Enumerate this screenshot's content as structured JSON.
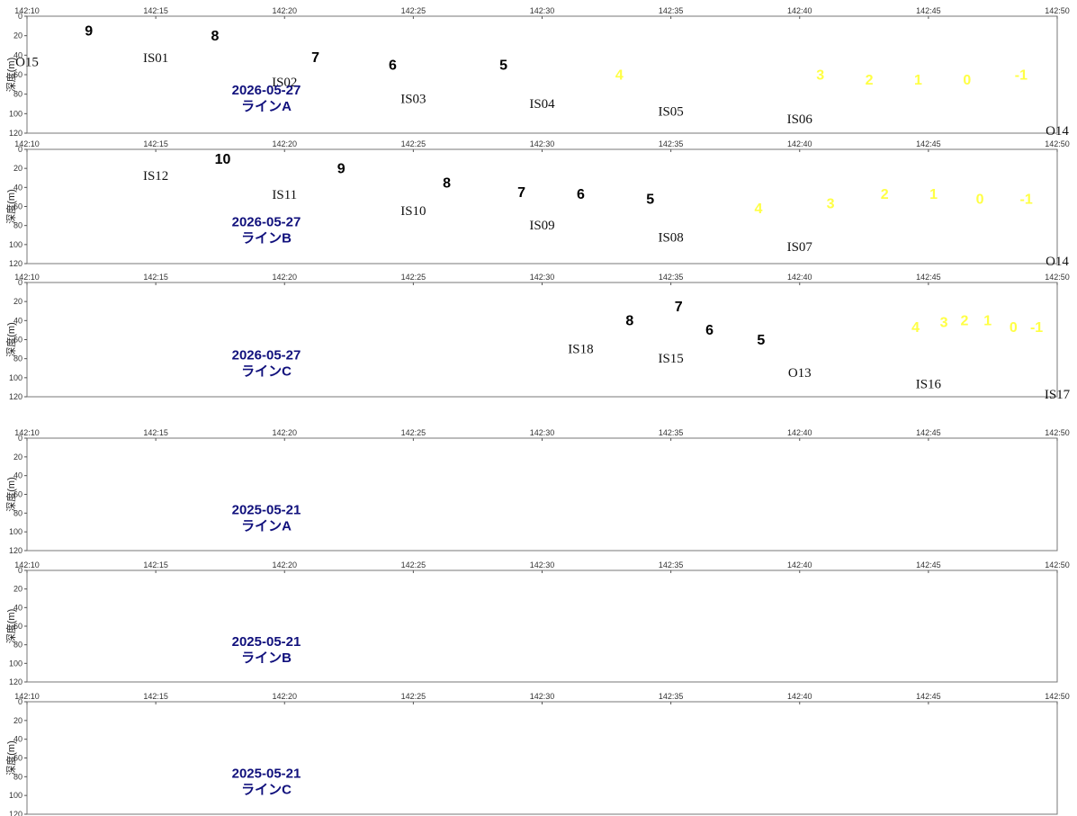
{
  "colors": {
    "warm": [
      "#fcdede",
      "#f9b9b9",
      "#f39494",
      "#ee7575"
    ],
    "cold": [
      "#e0e1fb",
      "#c2c3f7",
      "#a3a5f2",
      "#8789ee",
      "#6466e8",
      "#4245e2",
      "#2124dc",
      "#0a0cd8"
    ],
    "terrain": "#bdbdbd",
    "station_line": "#22dd22",
    "date_text": "#10107c",
    "warm_label": "#000000",
    "cold_label": "#ffff44"
  },
  "chart_data": [
    {
      "type": "contour",
      "date": "2026-05-27",
      "line": "ラインA",
      "ylabel": "深度(m)",
      "x_ticks": [
        "142:10",
        "142:15",
        "142:20",
        "142:25",
        "142:30",
        "142:35",
        "142:40",
        "142:45",
        "142:50"
      ],
      "y_ticks": [
        "0",
        "20",
        "40",
        "60",
        "80",
        "100",
        "120"
      ],
      "xlim": [
        10,
        50
      ],
      "ylim": [
        0,
        120
      ],
      "stations": [
        {
          "name": "O15",
          "lon": 10,
          "depth": 37
        },
        {
          "name": "IS01",
          "lon": 15,
          "depth": 33
        },
        {
          "name": "IS02",
          "lon": 20,
          "depth": 58
        },
        {
          "name": "IS03",
          "lon": 25,
          "depth": 75
        },
        {
          "name": "IS04",
          "lon": 30,
          "depth": 80
        },
        {
          "name": "IS05",
          "lon": 35,
          "depth": 88
        },
        {
          "name": "IS06",
          "lon": 40,
          "depth": 96
        },
        {
          "name": "O14",
          "lon": 50,
          "depth": 112
        }
      ],
      "temperature_labels": [
        {
          "text": "9",
          "lon": 12.4,
          "depth": 20,
          "color": "warm_label"
        },
        {
          "text": "8",
          "lon": 17.3,
          "depth": 25,
          "color": "warm_label"
        },
        {
          "text": "7",
          "lon": 21.2,
          "depth": 47,
          "color": "warm_label"
        },
        {
          "text": "6",
          "lon": 24.2,
          "depth": 55,
          "color": "warm_label"
        },
        {
          "text": "5",
          "lon": 28.5,
          "depth": 55,
          "color": "warm_label"
        },
        {
          "text": "4",
          "lon": 33.0,
          "depth": 65,
          "color": "cold_label"
        },
        {
          "text": "3",
          "lon": 40.8,
          "depth": 65,
          "color": "cold_label"
        },
        {
          "text": "2",
          "lon": 42.7,
          "depth": 70,
          "color": "cold_label"
        },
        {
          "text": "1",
          "lon": 44.6,
          "depth": 70,
          "color": "cold_label"
        },
        {
          "text": "0",
          "lon": 46.5,
          "depth": 70,
          "color": "cold_label"
        },
        {
          "text": "-1",
          "lon": 48.6,
          "depth": 65,
          "color": "cold_label"
        }
      ]
    },
    {
      "type": "contour",
      "date": "2026-05-27",
      "line": "ラインB",
      "ylabel": "深度(m)",
      "x_ticks": [
        "142:10",
        "142:15",
        "142:20",
        "142:25",
        "142:30",
        "142:35",
        "142:40",
        "142:45",
        "142:50"
      ],
      "y_ticks": [
        "0",
        "20",
        "40",
        "60",
        "80",
        "100",
        "120"
      ],
      "xlim": [
        10,
        50
      ],
      "ylim": [
        0,
        120
      ],
      "stations": [
        {
          "name": "IS12",
          "lon": 15,
          "depth": 18
        },
        {
          "name": "IS11",
          "lon": 20,
          "depth": 38
        },
        {
          "name": "IS10",
          "lon": 25,
          "depth": 55
        },
        {
          "name": "IS09",
          "lon": 30,
          "depth": 70
        },
        {
          "name": "IS08",
          "lon": 35,
          "depth": 83
        },
        {
          "name": "IS07",
          "lon": 40,
          "depth": 93
        },
        {
          "name": "O14",
          "lon": 50,
          "depth": 112
        }
      ],
      "temperature_labels": [
        {
          "text": "10",
          "lon": 17.6,
          "depth": 15,
          "color": "warm_label"
        },
        {
          "text": "9",
          "lon": 22.2,
          "depth": 25,
          "color": "warm_label"
        },
        {
          "text": "8",
          "lon": 26.3,
          "depth": 40,
          "color": "warm_label"
        },
        {
          "text": "7",
          "lon": 29.2,
          "depth": 50,
          "color": "warm_label"
        },
        {
          "text": "6",
          "lon": 31.5,
          "depth": 52,
          "color": "warm_label"
        },
        {
          "text": "5",
          "lon": 34.2,
          "depth": 57,
          "color": "warm_label"
        },
        {
          "text": "4",
          "lon": 38.4,
          "depth": 67,
          "color": "cold_label"
        },
        {
          "text": "3",
          "lon": 41.2,
          "depth": 62,
          "color": "cold_label"
        },
        {
          "text": "2",
          "lon": 43.3,
          "depth": 52,
          "color": "cold_label"
        },
        {
          "text": "1",
          "lon": 45.2,
          "depth": 52,
          "color": "cold_label"
        },
        {
          "text": "0",
          "lon": 47.0,
          "depth": 57,
          "color": "cold_label"
        },
        {
          "text": "-1",
          "lon": 48.8,
          "depth": 57,
          "color": "cold_label"
        }
      ]
    },
    {
      "type": "contour",
      "date": "2026-05-27",
      "line": "ラインC",
      "ylabel": "深度(m)",
      "x_ticks": [
        "142:10",
        "142:15",
        "142:20",
        "142:25",
        "142:30",
        "142:35",
        "142:40",
        "142:45",
        "142:50"
      ],
      "y_ticks": [
        "0",
        "20",
        "40",
        "60",
        "80",
        "100",
        "120"
      ],
      "xlim": [
        10,
        50
      ],
      "ylim": [
        0,
        120
      ],
      "stations": [
        {
          "name": "IS18",
          "lon": 31.5,
          "depth": 60
        },
        {
          "name": "IS15",
          "lon": 35,
          "depth": 70
        },
        {
          "name": "O13",
          "lon": 40,
          "depth": 85
        },
        {
          "name": "IS16",
          "lon": 45,
          "depth": 97
        },
        {
          "name": "IS17",
          "lon": 50,
          "depth": 112
        }
      ],
      "temperature_labels": [
        {
          "text": "8",
          "lon": 33.4,
          "depth": 45,
          "color": "warm_label"
        },
        {
          "text": "7",
          "lon": 35.3,
          "depth": 30,
          "color": "warm_label"
        },
        {
          "text": "6",
          "lon": 36.5,
          "depth": 55,
          "color": "warm_label"
        },
        {
          "text": "5",
          "lon": 38.5,
          "depth": 65,
          "color": "warm_label"
        },
        {
          "text": "4",
          "lon": 44.5,
          "depth": 52,
          "color": "cold_label"
        },
        {
          "text": "3",
          "lon": 45.6,
          "depth": 47,
          "color": "cold_label"
        },
        {
          "text": "2",
          "lon": 46.4,
          "depth": 45,
          "color": "cold_label"
        },
        {
          "text": "1",
          "lon": 47.3,
          "depth": 45,
          "color": "cold_label"
        },
        {
          "text": "0",
          "lon": 48.3,
          "depth": 52,
          "color": "cold_label"
        },
        {
          "text": "-1",
          "lon": 49.2,
          "depth": 52,
          "color": "cold_label"
        }
      ]
    },
    {
      "type": "contour",
      "date": "2025-05-21",
      "line": "ラインA",
      "ylabel": "深度(m)",
      "x_ticks": [
        "142:10",
        "142:15",
        "142:20",
        "142:25",
        "142:30",
        "142:35",
        "142:40",
        "142:45",
        "142:50"
      ],
      "y_ticks": [
        "0",
        "20",
        "40",
        "60",
        "80",
        "100",
        "120"
      ],
      "xlim": [
        10,
        50
      ],
      "ylim": [
        0,
        120
      ],
      "stations": [
        {
          "name": "",
          "lon": 10,
          "depth": 30
        },
        {
          "name": "",
          "lon": 15,
          "depth": 25
        },
        {
          "name": "",
          "lon": 20,
          "depth": 55
        },
        {
          "name": "",
          "lon": 25,
          "depth": 70
        },
        {
          "name": "",
          "lon": 30,
          "depth": 75
        },
        {
          "name": "",
          "lon": 35,
          "depth": 83
        },
        {
          "name": "",
          "lon": 40,
          "depth": 88
        },
        {
          "name": "",
          "lon": 50,
          "depth": 108
        }
      ],
      "temperature_labels": []
    },
    {
      "type": "contour",
      "date": "2025-05-21",
      "line": "ラインB",
      "ylabel": "深度(m)",
      "x_ticks": [
        "142:10",
        "142:15",
        "142:20",
        "142:25",
        "142:30",
        "142:35",
        "142:40",
        "142:45",
        "142:50"
      ],
      "y_ticks": [
        "0",
        "20",
        "40",
        "60",
        "80",
        "100",
        "120"
      ],
      "xlim": [
        10,
        50
      ],
      "ylim": [
        0,
        120
      ],
      "stations": [
        {
          "name": "",
          "lon": 15,
          "depth": 18
        },
        {
          "name": "",
          "lon": 20,
          "depth": 45
        },
        {
          "name": "",
          "lon": 25,
          "depth": 55
        },
        {
          "name": "",
          "lon": 30,
          "depth": 68
        },
        {
          "name": "",
          "lon": 35,
          "depth": 80
        },
        {
          "name": "",
          "lon": 40,
          "depth": 88
        },
        {
          "name": "",
          "lon": 50,
          "depth": 110
        }
      ],
      "temperature_labels": []
    },
    {
      "type": "contour",
      "date": "2025-05-21",
      "line": "ラインC",
      "ylabel": "深度(m)",
      "x_ticks": [
        "142:10",
        "142:15",
        "142:20",
        "142:25",
        "142:30",
        "142:35",
        "142:40",
        "142:45",
        "142:50"
      ],
      "y_ticks": [
        "0",
        "20",
        "40",
        "60",
        "80",
        "100",
        "120"
      ],
      "xlim": [
        10,
        50
      ],
      "ylim": [
        0,
        120
      ],
      "stations": [
        {
          "name": "",
          "lon": 31.5,
          "depth": 58
        },
        {
          "name": "",
          "lon": 35,
          "depth": 65
        },
        {
          "name": "",
          "lon": 40,
          "depth": 75
        },
        {
          "name": "",
          "lon": 45,
          "depth": 95
        },
        {
          "name": "",
          "lon": 50,
          "depth": 108
        }
      ],
      "temperature_labels": []
    }
  ]
}
